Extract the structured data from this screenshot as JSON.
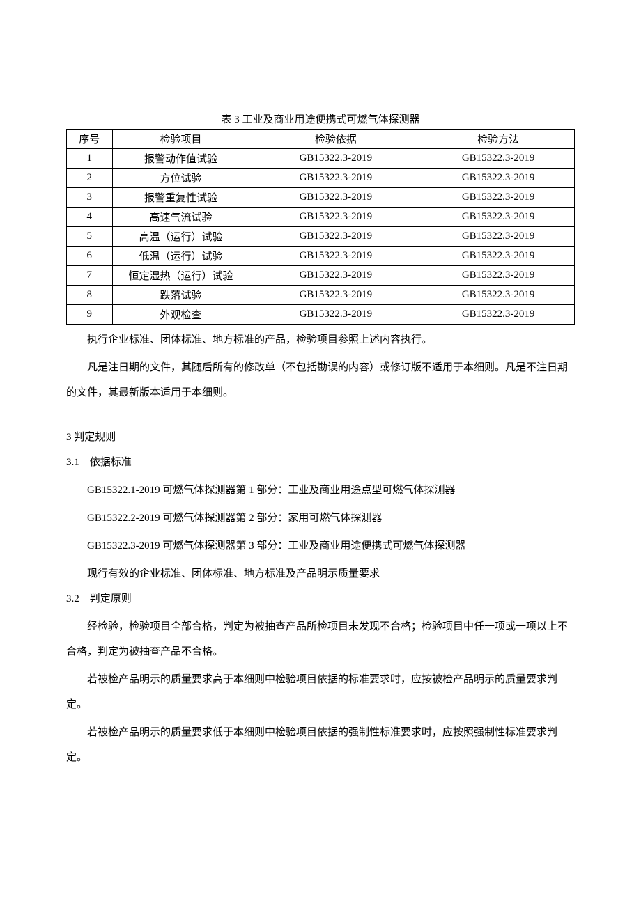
{
  "table": {
    "caption": "表 3 工业及商业用途便携式可燃气体探测器",
    "headers": [
      "序号",
      "检验项目",
      "检验依据",
      "检验方法"
    ],
    "rows": [
      [
        "1",
        "报警动作值试验",
        "GB15322.3-2019",
        "GB15322.3-2019"
      ],
      [
        "2",
        "方位试验",
        "GB15322.3-2019",
        "GB15322.3-2019"
      ],
      [
        "3",
        "报警重复性试验",
        "GB15322.3-2019",
        "GB15322.3-2019"
      ],
      [
        "4",
        "高速气流试验",
        "GB15322.3-2019",
        "GB15322.3-2019"
      ],
      [
        "5",
        "高温（运行）试验",
        "GB15322.3-2019",
        "GB15322.3-2019"
      ],
      [
        "6",
        "低温（运行）试验",
        "GB15322.3-2019",
        "GB15322.3-2019"
      ],
      [
        "7",
        "恒定湿热（运行）试验",
        "GB15322.3-2019",
        "GB15322.3-2019"
      ],
      [
        "8",
        "跌落试验",
        "GB15322.3-2019",
        "GB15322.3-2019"
      ],
      [
        "9",
        "外观检查",
        "GB15322.3-2019",
        "GB15322.3-2019"
      ]
    ]
  },
  "para1": "执行企业标准、团体标准、地方标准的产品，检验项目参照上述内容执行。",
  "para2": "凡是注日期的文件，其随后所有的修改单（不包括勘误的内容）或修订版不适用于本细则。凡是不注日期的文件，其最新版本适用于本细则。",
  "section3": {
    "num": "3",
    "title": "判定规则"
  },
  "section3_1": {
    "num": "3.1",
    "title": "依据标准",
    "lines": [
      "GB15322.1-2019 可燃气体探测器第 1 部分：工业及商业用途点型可燃气体探测器",
      "GB15322.2-2019 可燃气体探测器第 2 部分：家用可燃气体探测器",
      "GB15322.3-2019 可燃气体探测器第 3 部分：工业及商业用途便携式可燃气体探测器",
      "现行有效的企业标准、团体标准、地方标准及产品明示质量要求"
    ]
  },
  "section3_2": {
    "num": "3.2",
    "title": "判定原则",
    "paras": [
      "经检验，检验项目全部合格，判定为被抽查产品所检项目未发现不合格；检验项目中任一项或一项以上不合格，判定为被抽查产品不合格。",
      "若被检产品明示的质量要求高于本细则中检验项目依据的标准要求时，应按被检产品明示的质量要求判定。",
      "若被检产品明示的质量要求低于本细则中检验项目依据的强制性标准要求时，应按照强制性标准要求判定。"
    ]
  }
}
